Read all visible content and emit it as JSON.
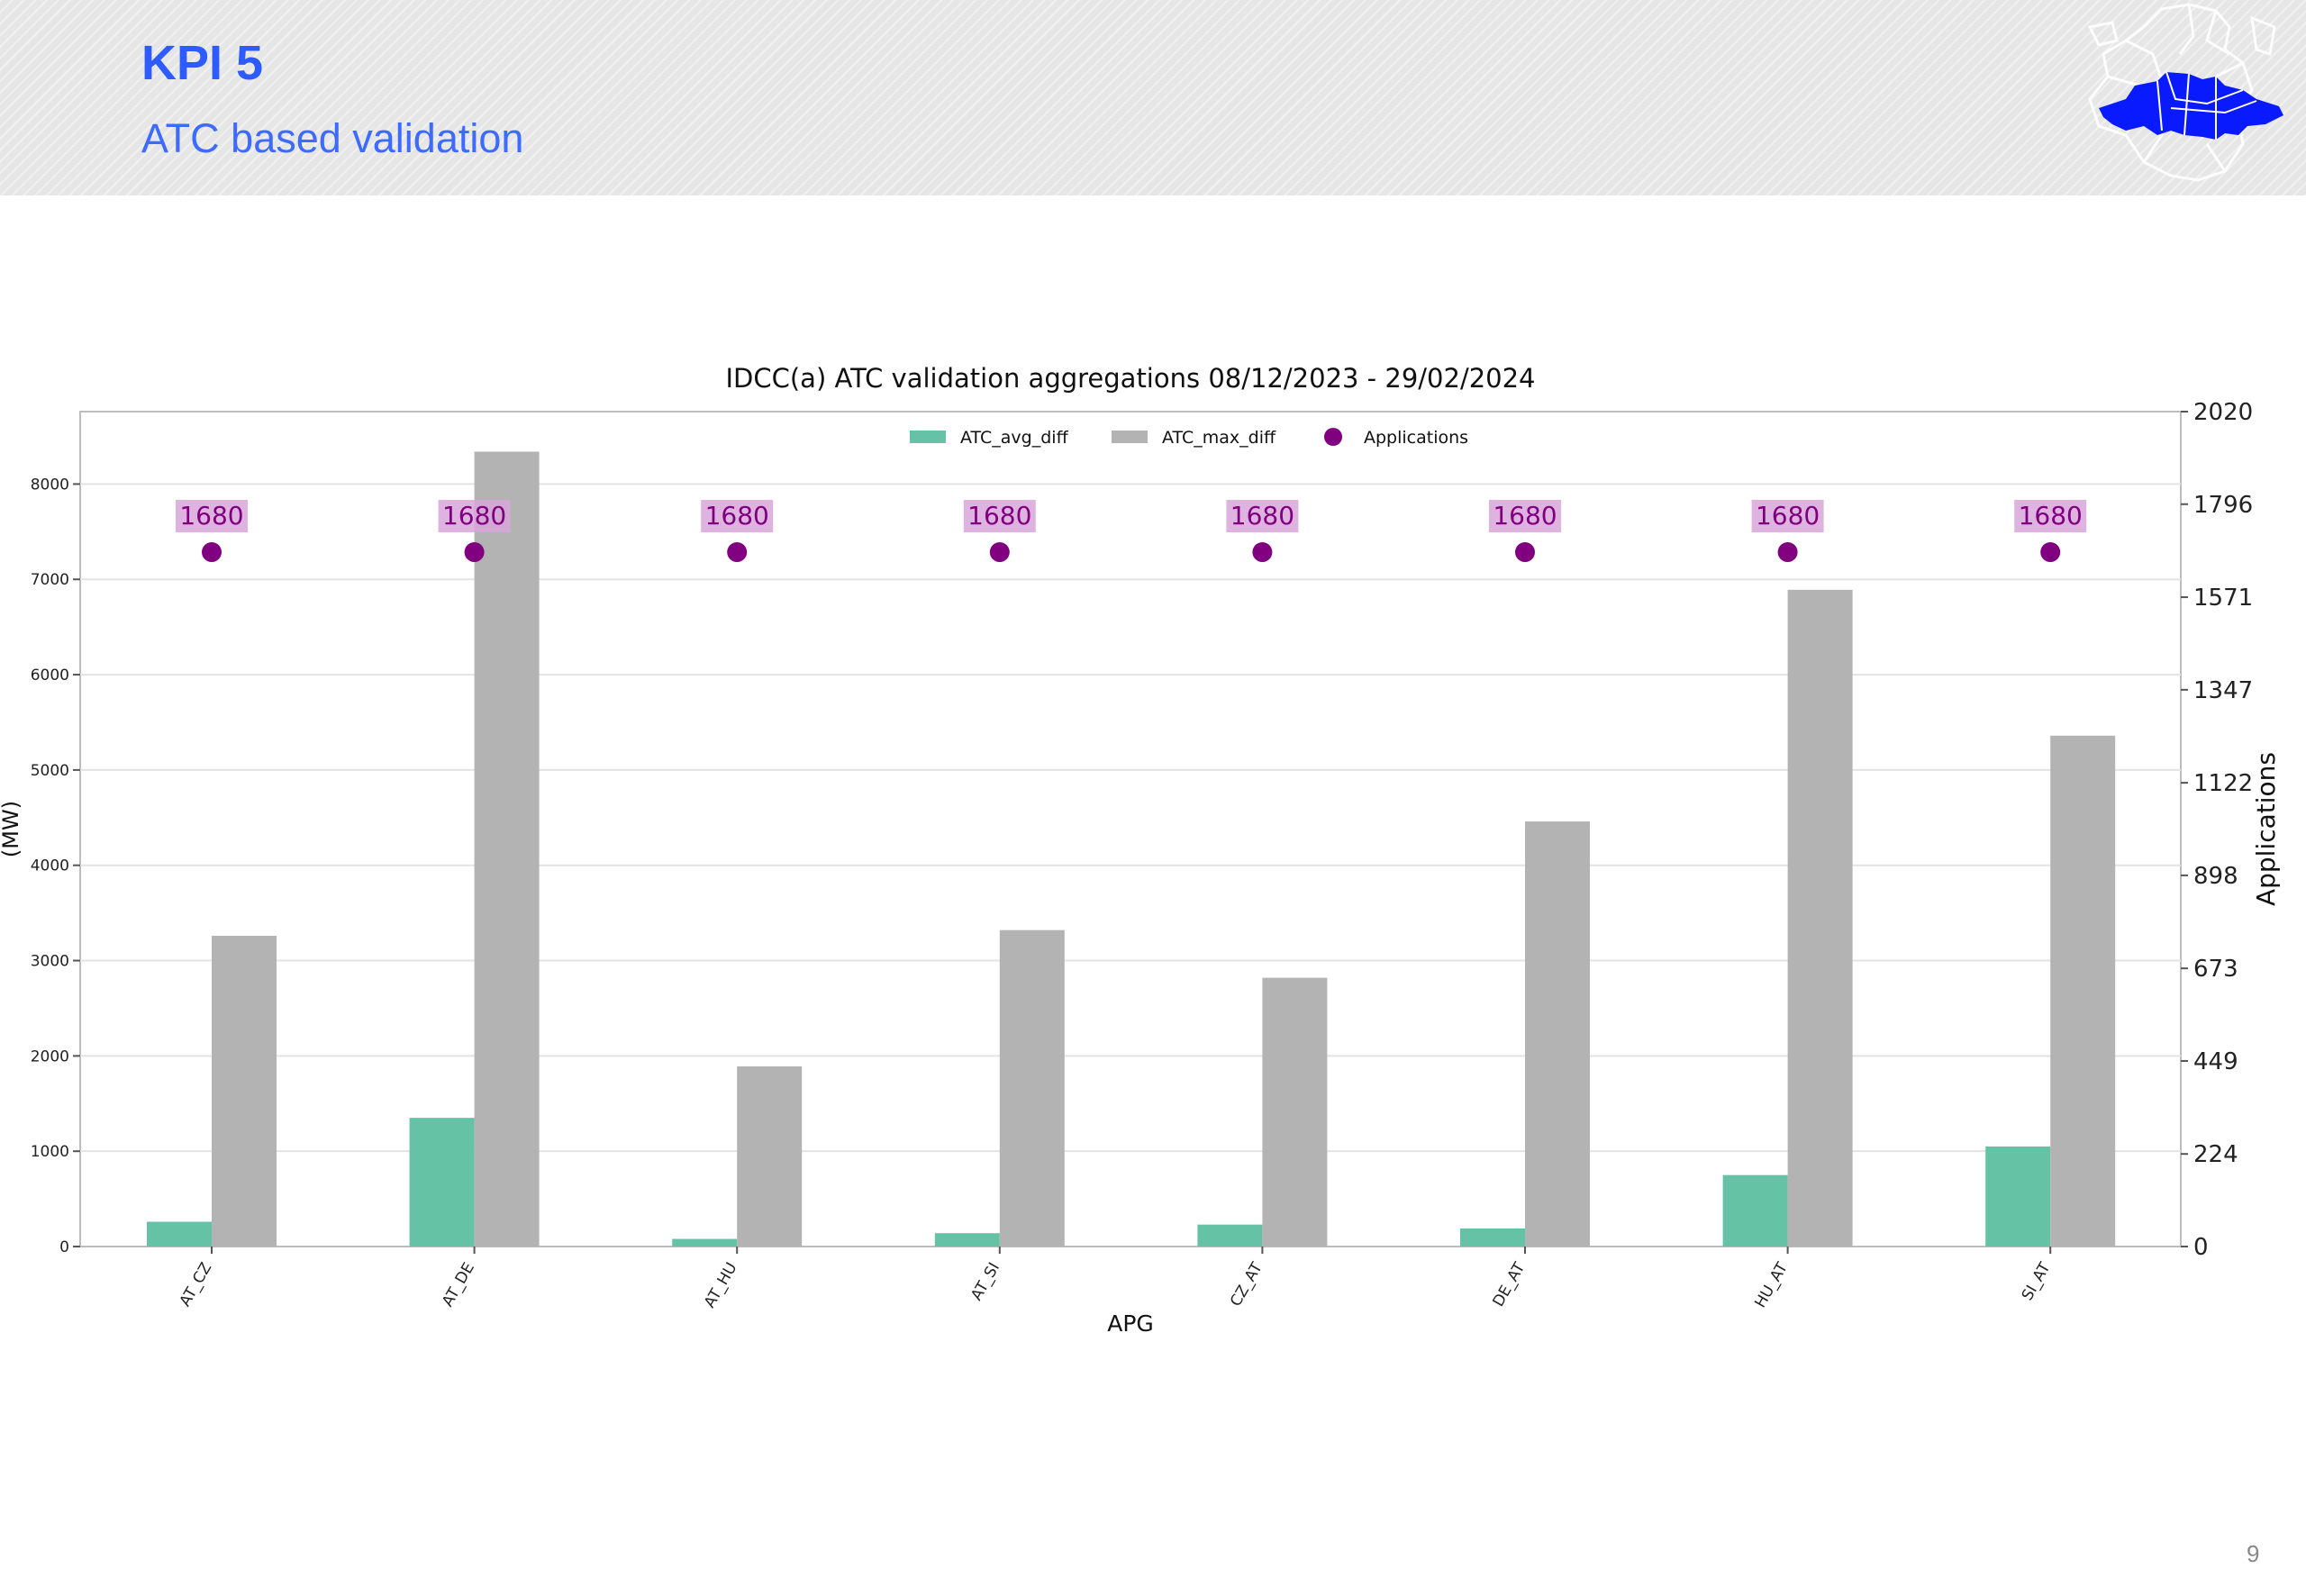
{
  "slide": {
    "title": "KPI 5",
    "subtitle": "ATC based validation",
    "page_number": "9"
  },
  "chart_data": {
    "type": "bar",
    "title": "IDCC(a) ATC validation aggregations 08/12/2023 - 29/02/2024",
    "xlabel": "APG",
    "ylabel": "(MW)",
    "y2label": "Applications",
    "categories": [
      "AT_CZ",
      "AT_DE",
      "AT_HU",
      "AT_SI",
      "CZ_AT",
      "DE_AT",
      "HU_AT",
      "SI_AT"
    ],
    "ylim": [
      0,
      8760
    ],
    "y2lim": [
      0,
      2020
    ],
    "yticks": [
      0,
      1000,
      2000,
      3000,
      4000,
      5000,
      6000,
      7000,
      8000
    ],
    "y2ticks": [
      0,
      224,
      449,
      673,
      898,
      1122,
      1347,
      1571,
      1796,
      2020
    ],
    "grid": true,
    "legend_position": "top-center",
    "series": [
      {
        "name": "ATC_avg_diff",
        "kind": "bar",
        "axis": "left",
        "color": "#66c2a5",
        "values": [
          260,
          1350,
          80,
          140,
          230,
          190,
          750,
          1050
        ]
      },
      {
        "name": "ATC_max_diff",
        "kind": "bar",
        "axis": "left",
        "color": "#b3b3b3",
        "values": [
          3260,
          8340,
          1890,
          3320,
          2820,
          4460,
          6890,
          5360
        ]
      },
      {
        "name": "Applications",
        "kind": "scatter",
        "axis": "right",
        "color": "#800080",
        "values": [
          1680,
          1680,
          1680,
          1680,
          1680,
          1680,
          1680,
          1680
        ],
        "data_labels": [
          "1680",
          "1680",
          "1680",
          "1680",
          "1680",
          "1680",
          "1680",
          "1680"
        ]
      }
    ]
  }
}
